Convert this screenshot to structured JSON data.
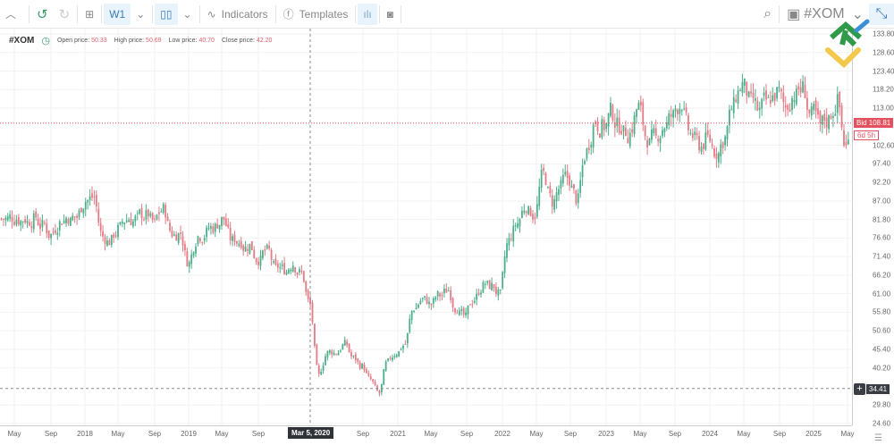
{
  "toolbar": {
    "timeframe": "W1",
    "indicators": "Indicators",
    "templates": "Templates",
    "symbol": "#XOM"
  },
  "info": {
    "symbol": "#XOM",
    "open_label": "Open price:",
    "open": "50.33",
    "high_label": "High price:",
    "high": "50.69",
    "low_label": "Low price:",
    "low": "40.70",
    "close_label": "Close price:",
    "close": "42.20"
  },
  "price_axis": {
    "ticks": [
      "133.80",
      "128.60",
      "123.40",
      "118.20",
      "113.00",
      "102.60",
      "97.40",
      "92.20",
      "87.00",
      "81.80",
      "76.60",
      "71.40",
      "66.20",
      "61.00",
      "55.80",
      "50.60",
      "45.40",
      "40.20",
      "29.80",
      "24.60"
    ]
  },
  "time_axis": {
    "ticks": [
      "May",
      "Sep",
      "2018",
      "May",
      "Sep",
      "2019",
      "May",
      "Sep",
      "Sep",
      "2021",
      "May",
      "Sep",
      "2022",
      "May",
      "Sep",
      "2023",
      "May",
      "Sep",
      "2024",
      "May",
      "Sep",
      "2025",
      "May"
    ]
  },
  "bid": {
    "label": "Bid 108.81",
    "value": 108.81,
    "timer": "6d 5h"
  },
  "crosshair": {
    "date": "Mar 5, 2020",
    "price": "34.41"
  },
  "colors": {
    "up": "#4caf8a",
    "down": "#e57a84",
    "bid": "#e5505e"
  },
  "chart_data": {
    "type": "candlestick",
    "timeframe": "W1",
    "symbol": "#XOM",
    "ylim": [
      24.6,
      133.8
    ],
    "monthly_closes_approx": {
      "start": "2017-03",
      "values": [
        82,
        82,
        82,
        81.6,
        80,
        77.4,
        80.7,
        82.4,
        82.4,
        87,
        88,
        77,
        75.7,
        79.5,
        82,
        82,
        82.7,
        80.7,
        84.5,
        78,
        78,
        69.4,
        77,
        78,
        79.5,
        82,
        75.7,
        75.7,
        74.4,
        70.7,
        73,
        68,
        68,
        69.4,
        66.9,
        58,
        38,
        44.4,
        44.4,
        46.9,
        43,
        40.6,
        36.9,
        33,
        41.9,
        44.4,
        46.9,
        56.9,
        59.4,
        58,
        60.7,
        62,
        56.9,
        54.4,
        59.4,
        63,
        63,
        60.7,
        75.7,
        80.7,
        85.7,
        83.2,
        94.5,
        87,
        90.7,
        93.2,
        87,
        100.7,
        109.5,
        108.2,
        112,
        108,
        105.7,
        113.3,
        104.5,
        104.5,
        108.2,
        110.7,
        114.5,
        105.7,
        103.2,
        104.5,
        100.7,
        104.5,
        113.3,
        119.5,
        114.5,
        112,
        114.5,
        117,
        113.3,
        117,
        118.3,
        110.7,
        108.2,
        109.5,
        114.5,
        102,
        105.7
      ]
    }
  }
}
